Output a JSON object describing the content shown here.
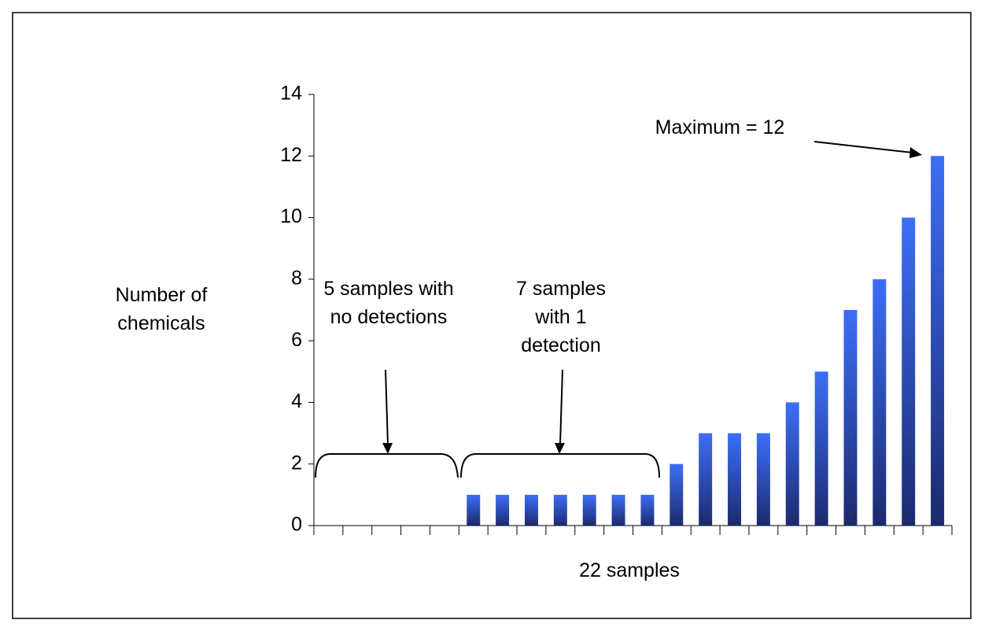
{
  "chart_data": {
    "type": "bar",
    "categories": [
      null,
      null,
      null,
      null,
      null,
      null,
      null,
      null,
      null,
      null,
      null,
      null,
      null,
      null,
      null,
      null,
      null,
      null,
      null,
      null,
      null,
      null
    ],
    "values": [
      0,
      0,
      0,
      0,
      0,
      1,
      1,
      1,
      1,
      1,
      1,
      1,
      2,
      3,
      3,
      3,
      4,
      5,
      7,
      8,
      10,
      12
    ],
    "color": "#3d6ef7",
    "xlabel": "22 samples",
    "ylabel": "Number of chemicals",
    "ylim": [
      0,
      14
    ],
    "yticks": [
      0,
      2,
      4,
      6,
      8,
      10,
      12,
      14
    ],
    "grid": false,
    "annotations": [
      "5 samples with no detections",
      "7 samples with 1 detection",
      "Maximum = 12"
    ]
  }
}
